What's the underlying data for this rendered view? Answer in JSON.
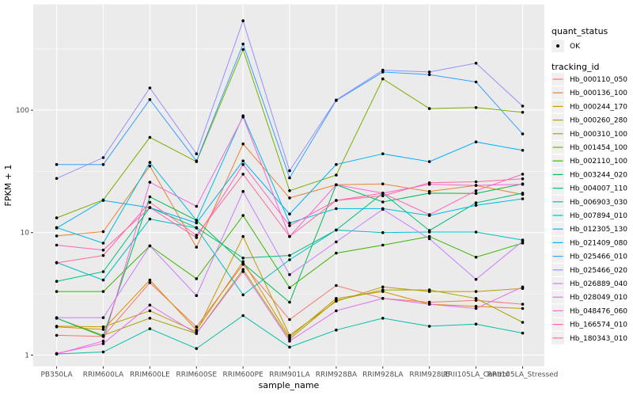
{
  "chart_data": {
    "type": "line",
    "title": "",
    "xlabel": "sample_name",
    "ylabel": "FPKM + 1",
    "y_scale": "log10",
    "y_ticks": [
      1,
      10,
      100
    ],
    "y_minor_ticks": [
      3.1623,
      31.623,
      316.23
    ],
    "ylim": [
      0.9,
      730
    ],
    "grid": true,
    "panel_bg": "#EBEBEB",
    "grid_color": "#FFFFFF",
    "point_color": "#000000",
    "legend_position": "right",
    "x_categories": [
      "PB350LA",
      "RRIM600LA",
      "RRIM600LE",
      "RRIM600SE",
      "RRIM600PE",
      "RRIM901LA",
      "RRIM928BA",
      "RRIM928LA",
      "RRIM928LE",
      "RRII105LA_Control",
      "RRII105LA_Stressed"
    ],
    "legend": {
      "quant_status_title": "quant_status",
      "quant_status_items": [
        "OK"
      ],
      "tracking_id_title": "tracking_id"
    },
    "series": [
      {
        "name": "Hb_000110_050",
        "color": "#F8766D",
        "values": [
          1.45,
          1.42,
          3.9,
          1.7,
          5.5,
          1.95,
          3.7,
          2.9,
          2.7,
          2.8,
          2.6
        ]
      },
      {
        "name": "Hb_000136_100",
        "color": "#EA8331",
        "values": [
          9.4,
          10.2,
          35,
          7.6,
          53,
          19.2,
          24.6,
          25,
          21.7,
          24.3,
          20.5
        ]
      },
      {
        "name": "Hb_000244_170",
        "color": "#D89000",
        "values": [
          1.7,
          1.62,
          4.1,
          1.6,
          5.8,
          1.4,
          2.9,
          3.3,
          2.6,
          2.5,
          2.4
        ]
      },
      {
        "name": "Hb_000260_280",
        "color": "#C09B00",
        "values": [
          1.72,
          1.7,
          2.3,
          1.55,
          9.3,
          1.45,
          2.75,
          3.6,
          3.3,
          3.3,
          3.5
        ]
      },
      {
        "name": "Hb_000310_100",
        "color": "#A3A500",
        "values": [
          2.0,
          1.45,
          2.0,
          1.5,
          5.0,
          1.35,
          2.8,
          3.4,
          3.4,
          2.9,
          1.85
        ]
      },
      {
        "name": "Hb_001454_100",
        "color": "#7CAE00",
        "values": [
          13.2,
          18.5,
          60,
          38,
          313,
          22,
          29.5,
          180,
          103,
          105,
          96
        ]
      },
      {
        "name": "Hb_002110_100",
        "color": "#39B600",
        "values": [
          3.3,
          3.3,
          7.8,
          4.2,
          13.8,
          3.55,
          6.8,
          7.9,
          9.3,
          6.3,
          8.2
        ]
      },
      {
        "name": "Hb_003244_020",
        "color": "#00BB4E",
        "values": [
          2.0,
          1.42,
          19.6,
          12.6,
          5.6,
          2.7,
          24.6,
          17.8,
          21,
          20.9,
          25
        ]
      },
      {
        "name": "Hb_004007_110",
        "color": "#00BF7D",
        "values": [
          4.0,
          4.8,
          16,
          11,
          6.2,
          6.5,
          10.5,
          21,
          10.4,
          17.5,
          21
        ]
      },
      {
        "name": "Hb_006903_030",
        "color": "#00C1A3",
        "values": [
          1.02,
          1.06,
          1.64,
          1.13,
          2.1,
          1.16,
          1.6,
          2.0,
          1.72,
          1.79,
          1.51
        ]
      },
      {
        "name": "Hb_007894_010",
        "color": "#00BFC4",
        "values": [
          5.7,
          4.1,
          12.9,
          10.9,
          3.1,
          6.0,
          10.5,
          10.0,
          10.1,
          10.1,
          8.7
        ]
      },
      {
        "name": "Hb_012305_130",
        "color": "#00BAE0",
        "values": [
          11,
          8.2,
          37.4,
          12.6,
          90,
          12,
          15.7,
          15.7,
          13.8,
          16.7,
          18.9
        ]
      },
      {
        "name": "Hb_021409_080",
        "color": "#00B0F6",
        "values": [
          10.9,
          18.3,
          16,
          12,
          38.5,
          14.2,
          36,
          44,
          38,
          55,
          47
        ]
      },
      {
        "name": "Hb_025466_010",
        "color": "#35A2FF",
        "values": [
          36,
          36,
          122,
          38.5,
          347,
          28,
          120,
          205,
          195,
          170,
          64
        ]
      },
      {
        "name": "Hb_025466_020",
        "color": "#9590FF",
        "values": [
          27.7,
          41,
          152,
          44,
          537,
          32,
          121,
          212,
          205,
          242,
          108
        ]
      },
      {
        "name": "Hb_026889_040",
        "color": "#C77CFF",
        "values": [
          2.02,
          2.02,
          7.8,
          3.06,
          21.7,
          4.54,
          8.4,
          15.5,
          8.9,
          4.15,
          8.5
        ]
      },
      {
        "name": "Hb_028049_010",
        "color": "#E76BF3",
        "values": [
          1.03,
          1.24,
          2.56,
          1.5,
          4.8,
          1.3,
          2.3,
          2.9,
          2.6,
          2.4,
          3.6
        ]
      },
      {
        "name": "Hb_048476_060",
        "color": "#FA62DB",
        "values": [
          1.02,
          1.3,
          25.8,
          16.4,
          88,
          9.3,
          24.6,
          21,
          24.8,
          24.3,
          24.8
        ]
      },
      {
        "name": "Hb_166574_010",
        "color": "#FF62BC",
        "values": [
          7.9,
          7.2,
          16,
          9.1,
          36,
          11.4,
          18.3,
          21,
          14,
          22,
          30
        ]
      },
      {
        "name": "Hb_180343_010",
        "color": "#FF6A98",
        "values": [
          5.66,
          6.5,
          17.7,
          9.5,
          30,
          9.3,
          18.3,
          20,
          25.5,
          26,
          27.5
        ]
      }
    ]
  }
}
